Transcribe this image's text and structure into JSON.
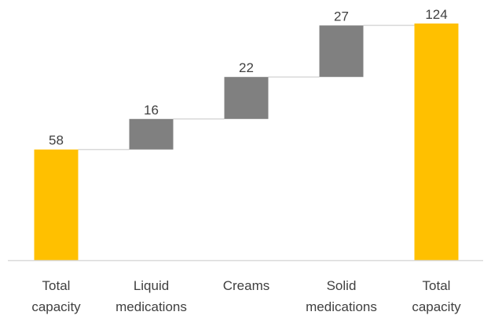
{
  "chart_data": {
    "type": "bar",
    "subtype": "waterfall",
    "title": "",
    "xlabel": "",
    "ylabel": "",
    "ylim": [
      0,
      124
    ],
    "grid": false,
    "legend": "none",
    "categories": [
      [
        "Total",
        "capacity"
      ],
      [
        "Liquid",
        "medications"
      ],
      [
        "Creams"
      ],
      [
        "Solid",
        "medications"
      ],
      [
        "Total",
        "capacity"
      ]
    ],
    "bars": [
      {
        "kind": "total",
        "base": 0,
        "value": 58,
        "label": "58"
      },
      {
        "kind": "delta",
        "base": 58,
        "value": 16,
        "label": "16"
      },
      {
        "kind": "delta",
        "base": 74,
        "value": 22,
        "label": "22"
      },
      {
        "kind": "delta",
        "base": 96,
        "value": 27,
        "label": "27"
      },
      {
        "kind": "total",
        "base": 0,
        "value": 124,
        "label": "124"
      }
    ],
    "colors": {
      "total": "#FFC000",
      "delta": "#808080",
      "connector": "#D9D9D9",
      "axis": "#D9D9D9",
      "text": "#404040"
    }
  }
}
